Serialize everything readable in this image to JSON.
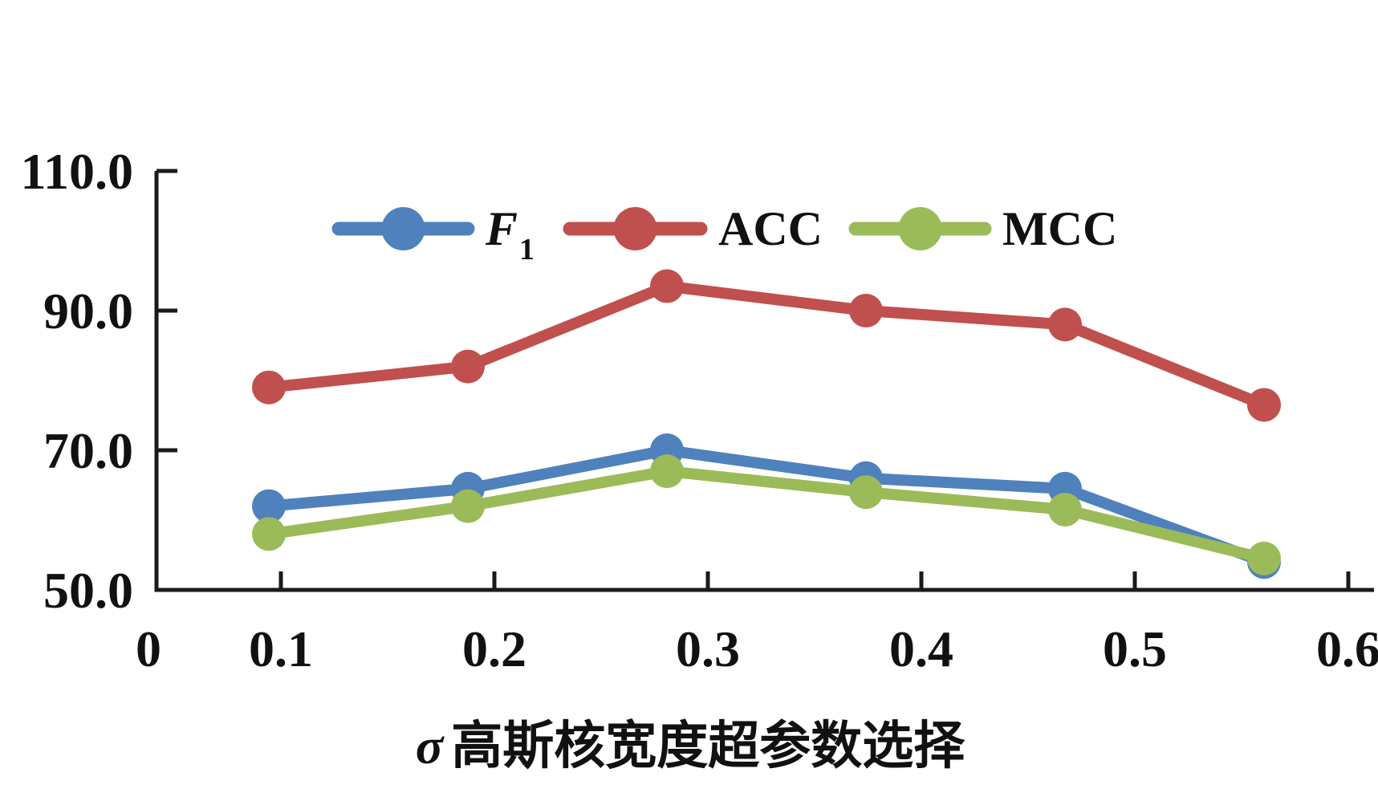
{
  "figure": {
    "background": "#ffffff",
    "axis_color": "#1a1a1a"
  },
  "chart_data": {
    "type": "line",
    "x": [
      0.1,
      0.2,
      0.3,
      0.4,
      0.5,
      0.6
    ],
    "x_tick_labels": [
      "0",
      "0.1",
      "0.2",
      "0.3",
      "0.4",
      "0.5",
      "0.6"
    ],
    "y_ticks": [
      50,
      70,
      90,
      110
    ],
    "y_tick_labels": [
      "50.0",
      "70.0",
      "90.0",
      "110.0"
    ],
    "ylim": [
      50,
      110
    ],
    "grid": false,
    "title": "",
    "xlabel": "σ高斯核宽度超参数选择",
    "xlabel_sigma": "σ",
    "xlabel_rest": "高斯核宽度超参数选择",
    "ylabel": "",
    "legend_position": "top-center-inside",
    "series": [
      {
        "name": "F1",
        "legend_label": "F",
        "legend_sub": "1",
        "legend_italic": true,
        "color": "#4F81BD",
        "values": [
          62.0,
          64.5,
          70.0,
          66.0,
          64.5,
          54.0
        ]
      },
      {
        "name": "ACC",
        "legend_label": "ACC",
        "legend_sub": "",
        "legend_italic": false,
        "color": "#C0504D",
        "values": [
          79.0,
          82.0,
          93.5,
          90.0,
          88.0,
          76.5
        ]
      },
      {
        "name": "MCC",
        "legend_label": "MCC",
        "legend_sub": "",
        "legend_italic": false,
        "color": "#9BBB59",
        "values": [
          58.0,
          62.0,
          67.0,
          64.0,
          61.5,
          54.5
        ]
      }
    ]
  }
}
